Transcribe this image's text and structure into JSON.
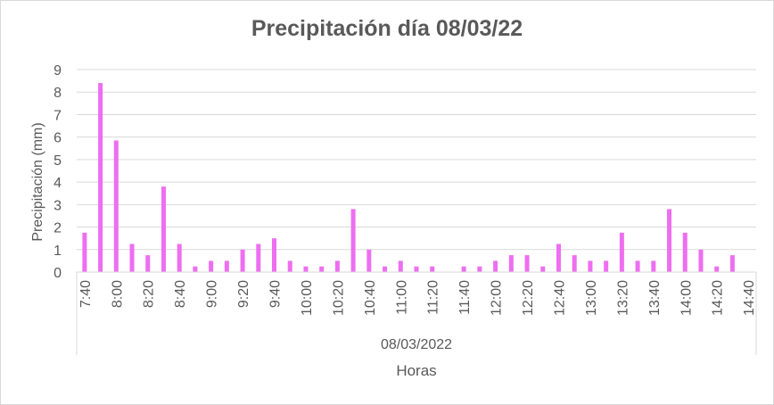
{
  "chart_data": {
    "type": "bar",
    "title": "Precipitación día 08/03/22",
    "ylabel": "Precipitación (mm)",
    "xlabel": "Horas",
    "group_label": "08/03/2022",
    "ylim": [
      0,
      9
    ],
    "yticks": [
      0,
      1,
      2,
      3,
      4,
      5,
      6,
      7,
      8,
      9
    ],
    "grid": true,
    "legend": "none",
    "bar_color": "#ee6ef0",
    "categories": [
      "7:40",
      "7:50",
      "8:00",
      "8:10",
      "8:20",
      "8:30",
      "8:40",
      "8:50",
      "9:00",
      "9:10",
      "9:20",
      "9:30",
      "9:40",
      "9:50",
      "10:00",
      "10:10",
      "10:20",
      "10:30",
      "10:40",
      "10:50",
      "11:00",
      "11:10",
      "11:20",
      "11:30",
      "11:40",
      "11:50",
      "12:00",
      "12:10",
      "12:20",
      "12:30",
      "12:40",
      "12:50",
      "13:00",
      "13:10",
      "13:20",
      "13:30",
      "13:40",
      "13:50",
      "14:00",
      "14:10",
      "14:20",
      "14:30",
      "14:40"
    ],
    "tick_labels": [
      "7:40",
      "8:00",
      "8:20",
      "8:40",
      "9:00",
      "9:20",
      "9:40",
      "10:00",
      "10:20",
      "10:40",
      "11:00",
      "11:20",
      "11:40",
      "12:00",
      "12:20",
      "12:40",
      "13:00",
      "13:20",
      "13:40",
      "14:00",
      "14:20",
      "14:40"
    ],
    "values": [
      1.75,
      8.4,
      5.85,
      1.25,
      0.75,
      3.8,
      1.25,
      0.25,
      0.5,
      0.5,
      1.0,
      1.25,
      1.5,
      0.5,
      0.25,
      0.25,
      0.5,
      2.8,
      1.0,
      0.25,
      0.5,
      0.25,
      0.25,
      0.0,
      0.25,
      0.25,
      0.5,
      0.75,
      0.75,
      0.25,
      1.25,
      0.75,
      0.5,
      0.5,
      1.75,
      0.5,
      0.5,
      2.8,
      1.75,
      1.0,
      0.25,
      0.75,
      0.0
    ]
  }
}
